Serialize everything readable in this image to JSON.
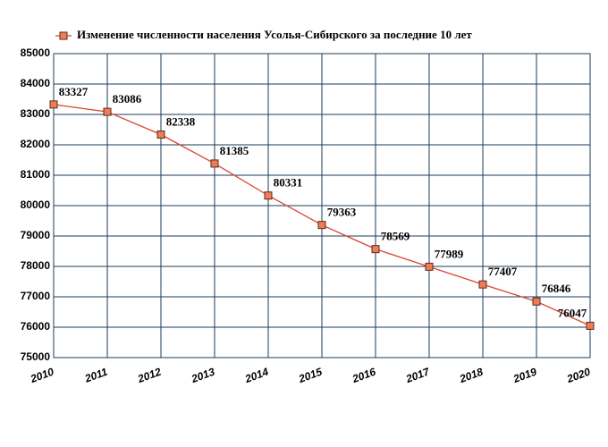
{
  "chart_data": {
    "type": "line",
    "x": [
      2010,
      2011,
      2012,
      2013,
      2014,
      2015,
      2016,
      2017,
      2018,
      2019,
      2020
    ],
    "series": [
      {
        "name": "Изменение численности населения Усолья-Сибирского за последние 10 лет",
        "color": "#d9442f",
        "marker_color": "#ee7d55",
        "values": [
          83327,
          83086,
          82338,
          81385,
          80331,
          79363,
          78569,
          77989,
          77407,
          76846,
          76047
        ]
      }
    ],
    "xlim": [
      2010,
      2020
    ],
    "xticks": [
      2010,
      2011,
      2012,
      2013,
      2014,
      2015,
      2016,
      2017,
      2018,
      2019,
      2020
    ],
    "ylim": [
      75000,
      85000
    ],
    "yticks": [
      75000,
      76000,
      77000,
      78000,
      79000,
      80000,
      81000,
      82000,
      83000,
      84000,
      85000
    ],
    "grid": true,
    "grid_color": "#1b3b5e",
    "legend": "top"
  }
}
